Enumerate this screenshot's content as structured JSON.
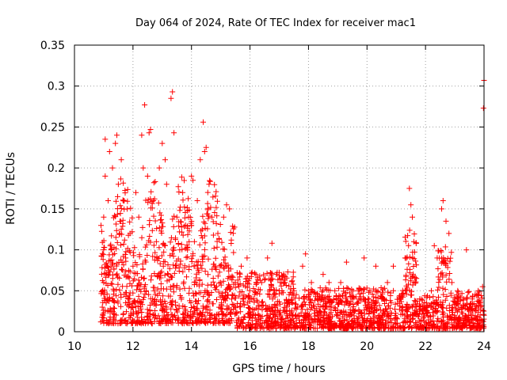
{
  "chart_data": {
    "type": "scatter",
    "title": "Day 064 of 2024, Rate Of TEC Index for receiver mac1",
    "xlabel": "GPS time / hours",
    "ylabel": "ROTI / TECUs",
    "xlim": [
      10,
      24
    ],
    "ylim": [
      0,
      0.35
    ],
    "x_ticks": [
      10,
      12,
      14,
      16,
      18,
      20,
      22,
      24
    ],
    "x_tick_labels": [
      "10",
      "12",
      "14",
      "16",
      "18",
      "20",
      "22",
      "24"
    ],
    "y_ticks": [
      0,
      0.05,
      0.1,
      0.15,
      0.2,
      0.25,
      0.3,
      0.35
    ],
    "y_tick_labels": [
      "0",
      "0.05",
      "0.1",
      "0.15",
      "0.2",
      "0.25",
      "0.3",
      "0.35"
    ],
    "grid": true,
    "marker": "+",
    "marker_color": "#ff0000",
    "series": [
      {
        "name": "ROTI",
        "points": [
          [
            10.9,
            0.012
          ],
          [
            10.95,
            0.03
          ],
          [
            11.0,
            0.06
          ],
          [
            11.0,
            0.14
          ],
          [
            11.05,
            0.19
          ],
          [
            11.05,
            0.235
          ],
          [
            11.1,
            0.08
          ],
          [
            11.15,
            0.16
          ],
          [
            11.2,
            0.22
          ],
          [
            11.25,
            0.1
          ],
          [
            11.3,
            0.2
          ],
          [
            11.35,
            0.05
          ],
          [
            11.4,
            0.23
          ],
          [
            11.45,
            0.24
          ],
          [
            11.5,
            0.18
          ],
          [
            11.55,
            0.12
          ],
          [
            11.6,
            0.21
          ],
          [
            11.7,
            0.16
          ],
          [
            11.75,
            0.09
          ],
          [
            11.8,
            0.15
          ],
          [
            11.85,
            0.04
          ],
          [
            11.9,
            0.12
          ],
          [
            12.0,
            0.08
          ],
          [
            12.1,
            0.17
          ],
          [
            12.2,
            0.14
          ],
          [
            12.3,
            0.24
          ],
          [
            12.35,
            0.2
          ],
          [
            12.4,
            0.277
          ],
          [
            12.45,
            0.05
          ],
          [
            12.5,
            0.19
          ],
          [
            12.55,
            0.243
          ],
          [
            12.6,
            0.247
          ],
          [
            12.7,
            0.16
          ],
          [
            12.8,
            0.11
          ],
          [
            12.9,
            0.2
          ],
          [
            13.0,
            0.23
          ],
          [
            13.1,
            0.21
          ],
          [
            13.15,
            0.18
          ],
          [
            13.2,
            0.07
          ],
          [
            13.3,
            0.285
          ],
          [
            13.35,
            0.293
          ],
          [
            13.4,
            0.243
          ],
          [
            13.5,
            0.14
          ],
          [
            13.6,
            0.1
          ],
          [
            13.7,
            0.17
          ],
          [
            13.8,
            0.13
          ],
          [
            13.9,
            0.14
          ],
          [
            14.0,
            0.19
          ],
          [
            14.05,
            0.185
          ],
          [
            14.1,
            0.11
          ],
          [
            14.2,
            0.16
          ],
          [
            14.3,
            0.21
          ],
          [
            14.4,
            0.256
          ],
          [
            14.45,
            0.22
          ],
          [
            14.5,
            0.225
          ],
          [
            14.6,
            0.18
          ],
          [
            14.7,
            0.14
          ],
          [
            14.8,
            0.08
          ],
          [
            14.9,
            0.12
          ],
          [
            15.0,
            0.06
          ],
          [
            15.1,
            0.14
          ],
          [
            15.2,
            0.155
          ],
          [
            15.3,
            0.15
          ],
          [
            15.5,
            0.06
          ],
          [
            15.7,
            0.08
          ],
          [
            15.9,
            0.09
          ],
          [
            16.0,
            0.04
          ],
          [
            16.2,
            0.07
          ],
          [
            16.4,
            0.06
          ],
          [
            16.6,
            0.09
          ],
          [
            16.75,
            0.108
          ],
          [
            16.9,
            0.07
          ],
          [
            17.0,
            0.05
          ],
          [
            17.2,
            0.06
          ],
          [
            17.5,
            0.05
          ],
          [
            17.8,
            0.08
          ],
          [
            17.9,
            0.095
          ],
          [
            18.1,
            0.06
          ],
          [
            18.3,
            0.04
          ],
          [
            18.5,
            0.07
          ],
          [
            18.7,
            0.06
          ],
          [
            18.9,
            0.05
          ],
          [
            19.1,
            0.06
          ],
          [
            19.3,
            0.085
          ],
          [
            19.5,
            0.04
          ],
          [
            19.7,
            0.05
          ],
          [
            19.9,
            0.09
          ],
          [
            20.1,
            0.05
          ],
          [
            20.3,
            0.08
          ],
          [
            20.5,
            0.04
          ],
          [
            20.7,
            0.06
          ],
          [
            20.9,
            0.08
          ],
          [
            21.1,
            0.04
          ],
          [
            21.3,
            0.09
          ],
          [
            21.45,
            0.175
          ],
          [
            21.5,
            0.155
          ],
          [
            21.55,
            0.14
          ],
          [
            21.6,
            0.11
          ],
          [
            21.8,
            0.04
          ],
          [
            22.0,
            0.03
          ],
          [
            22.2,
            0.05
          ],
          [
            22.3,
            0.105
          ],
          [
            22.4,
            0.09
          ],
          [
            22.55,
            0.15
          ],
          [
            22.6,
            0.16
          ],
          [
            22.7,
            0.135
          ],
          [
            22.8,
            0.12
          ],
          [
            22.9,
            0.06
          ],
          [
            23.1,
            0.05
          ],
          [
            23.3,
            0.04
          ],
          [
            23.4,
            0.1
          ],
          [
            23.6,
            0.04
          ],
          [
            23.8,
            0.05
          ],
          [
            23.95,
            0.055
          ],
          [
            23.98,
            0.273
          ],
          [
            24.0,
            0.307
          ],
          [
            24.0,
            0.02
          ]
        ]
      }
    ]
  }
}
